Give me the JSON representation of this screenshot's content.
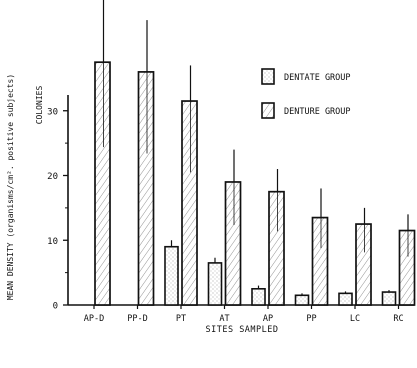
{
  "chart_data": {
    "type": "bar",
    "title": "",
    "xlabel": "SITES SAMPLED",
    "ylabel": "MEAN DENSITY (organisms/cm². positive subjects)",
    "y_unit_label": "COLONIES",
    "ylim": [
      0,
      40
    ],
    "yticks": [
      {
        "value": 0,
        "label": "0"
      },
      {
        "value": 10,
        "label": "10"
      },
      {
        "value": 20,
        "label": "20"
      },
      {
        "value": 30,
        "label": "30"
      }
    ],
    "categories": [
      "AP-D",
      "PP-D",
      "PT",
      "AT",
      "AP",
      "PP",
      "LC",
      "RC"
    ],
    "series": [
      {
        "name": "DENTATE GROUP",
        "values": [
          null,
          null,
          9,
          6.5,
          2.5,
          1.5,
          1.8,
          2
        ],
        "error": [
          null,
          null,
          1,
          0.8,
          0.5,
          0.3,
          0.3,
          0.3
        ]
      },
      {
        "name": "DENTURE GROUP",
        "values": [
          37.5,
          36,
          31.5,
          19,
          17.5,
          13.5,
          12.5,
          11.5
        ],
        "error": [
          11.5,
          8,
          5.5,
          5,
          3.5,
          4.5,
          2.5,
          2.5
        ]
      }
    ],
    "legend_position": "top-right",
    "grid": false
  }
}
